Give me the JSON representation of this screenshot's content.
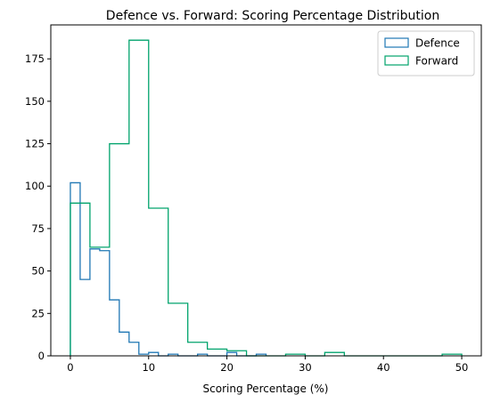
{
  "chart_data": {
    "type": "histogram-step",
    "title": "Defence vs. Forward: Scoring Percentage Distribution",
    "xlabel": "Scoring Percentage (%)",
    "ylabel": "",
    "xlim": [
      -2.5,
      52.5
    ],
    "ylim": [
      0,
      195
    ],
    "x_ticks": [
      0,
      10,
      20,
      30,
      40,
      50
    ],
    "y_ticks": [
      0,
      25,
      50,
      75,
      100,
      125,
      150,
      175
    ],
    "legend_position": "top-right",
    "grid": false,
    "series": [
      {
        "name": "Defence",
        "color": "#1f77b4",
        "bin_start": 0,
        "bin_width": 1.25,
        "counts": [
          102,
          45,
          63,
          62,
          33,
          14,
          8,
          1,
          2,
          0,
          1,
          0,
          0,
          1,
          0,
          0,
          2,
          0,
          0,
          1
        ]
      },
      {
        "name": "Forward",
        "color": "#00a36c",
        "bin_start": 0,
        "bin_width": 2.5,
        "counts": [
          90,
          64,
          125,
          186,
          87,
          31,
          8,
          4,
          3,
          0,
          0,
          1,
          0,
          2,
          0,
          0,
          0,
          0,
          0,
          1
        ]
      }
    ]
  }
}
